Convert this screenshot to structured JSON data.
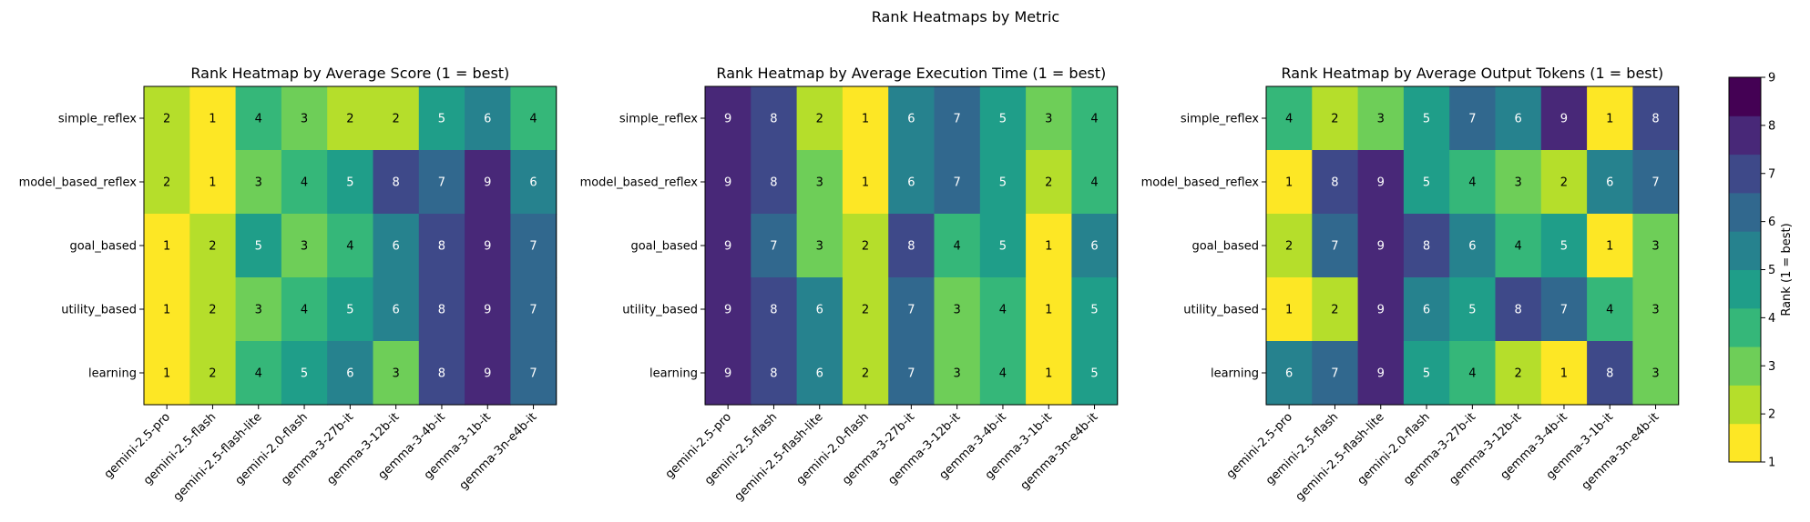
{
  "suptitle": "Rank Heatmaps by Metric",
  "colorbar": {
    "label": "Rank (1 = best)",
    "ticks": [
      1,
      2,
      3,
      4,
      5,
      6,
      7,
      8,
      9
    ],
    "colors": [
      "#fde725",
      "#b5de2b",
      "#6ece58",
      "#35b779",
      "#1f9e89",
      "#26828e",
      "#31688e",
      "#3e4989",
      "#482878",
      "#440154"
    ]
  },
  "chart_data": [
    {
      "type": "heatmap",
      "title": "Rank Heatmap by Average Score (1 = best)",
      "rows": [
        "simple_reflex",
        "model_based_reflex",
        "goal_based",
        "utility_based",
        "learning"
      ],
      "columns": [
        "gemini-2.5-pro",
        "gemini-2.5-flash",
        "gemini-2.5-flash-lite",
        "gemini-2.0-flash",
        "gemma-3-27b-it",
        "gemma-3-12b-it",
        "gemma-3-4b-it",
        "gemma-3-1b-it",
        "gemma-3n-e4b-it"
      ],
      "values": [
        [
          2,
          1,
          4,
          3,
          2,
          2,
          5,
          6,
          4
        ],
        [
          2,
          1,
          3,
          4,
          5,
          8,
          7,
          9,
          6
        ],
        [
          1,
          2,
          5,
          3,
          4,
          6,
          8,
          9,
          7
        ],
        [
          1,
          2,
          3,
          4,
          5,
          6,
          8,
          9,
          7
        ],
        [
          1,
          2,
          4,
          5,
          6,
          3,
          8,
          9,
          7
        ]
      ]
    },
    {
      "type": "heatmap",
      "title": "Rank Heatmap by Average Execution Time (1 = best)",
      "rows": [
        "simple_reflex",
        "model_based_reflex",
        "goal_based",
        "utility_based",
        "learning"
      ],
      "columns": [
        "gemini-2.5-pro",
        "gemini-2.5-flash",
        "gemini-2.5-flash-lite",
        "gemini-2.0-flash",
        "gemma-3-27b-it",
        "gemma-3-12b-it",
        "gemma-3-4b-it",
        "gemma-3-1b-it",
        "gemma-3n-e4b-it"
      ],
      "values": [
        [
          9,
          8,
          2,
          1,
          6,
          7,
          5,
          3,
          4
        ],
        [
          9,
          8,
          3,
          1,
          6,
          7,
          5,
          2,
          4
        ],
        [
          9,
          7,
          3,
          2,
          8,
          4,
          5,
          1,
          6
        ],
        [
          9,
          8,
          6,
          2,
          7,
          3,
          4,
          1,
          5
        ],
        [
          9,
          8,
          6,
          2,
          7,
          3,
          4,
          1,
          5
        ]
      ]
    },
    {
      "type": "heatmap",
      "title": "Rank Heatmap by Average Output Tokens (1 = best)",
      "rows": [
        "simple_reflex",
        "model_based_reflex",
        "goal_based",
        "utility_based",
        "learning"
      ],
      "columns": [
        "gemini-2.5-pro",
        "gemini-2.5-flash",
        "gemini-2.5-flash-lite",
        "gemini-2.0-flash",
        "gemma-3-27b-it",
        "gemma-3-12b-it",
        "gemma-3-4b-it",
        "gemma-3-1b-it",
        "gemma-3n-e4b-it"
      ],
      "values": [
        [
          4,
          2,
          3,
          5,
          7,
          6,
          9,
          1,
          8
        ],
        [
          1,
          8,
          9,
          5,
          4,
          3,
          2,
          6,
          7
        ],
        [
          2,
          7,
          9,
          8,
          6,
          4,
          5,
          1,
          3
        ],
        [
          1,
          2,
          9,
          6,
          5,
          8,
          7,
          4,
          3
        ],
        [
          6,
          7,
          9,
          5,
          4,
          2,
          1,
          8,
          3
        ]
      ]
    }
  ]
}
